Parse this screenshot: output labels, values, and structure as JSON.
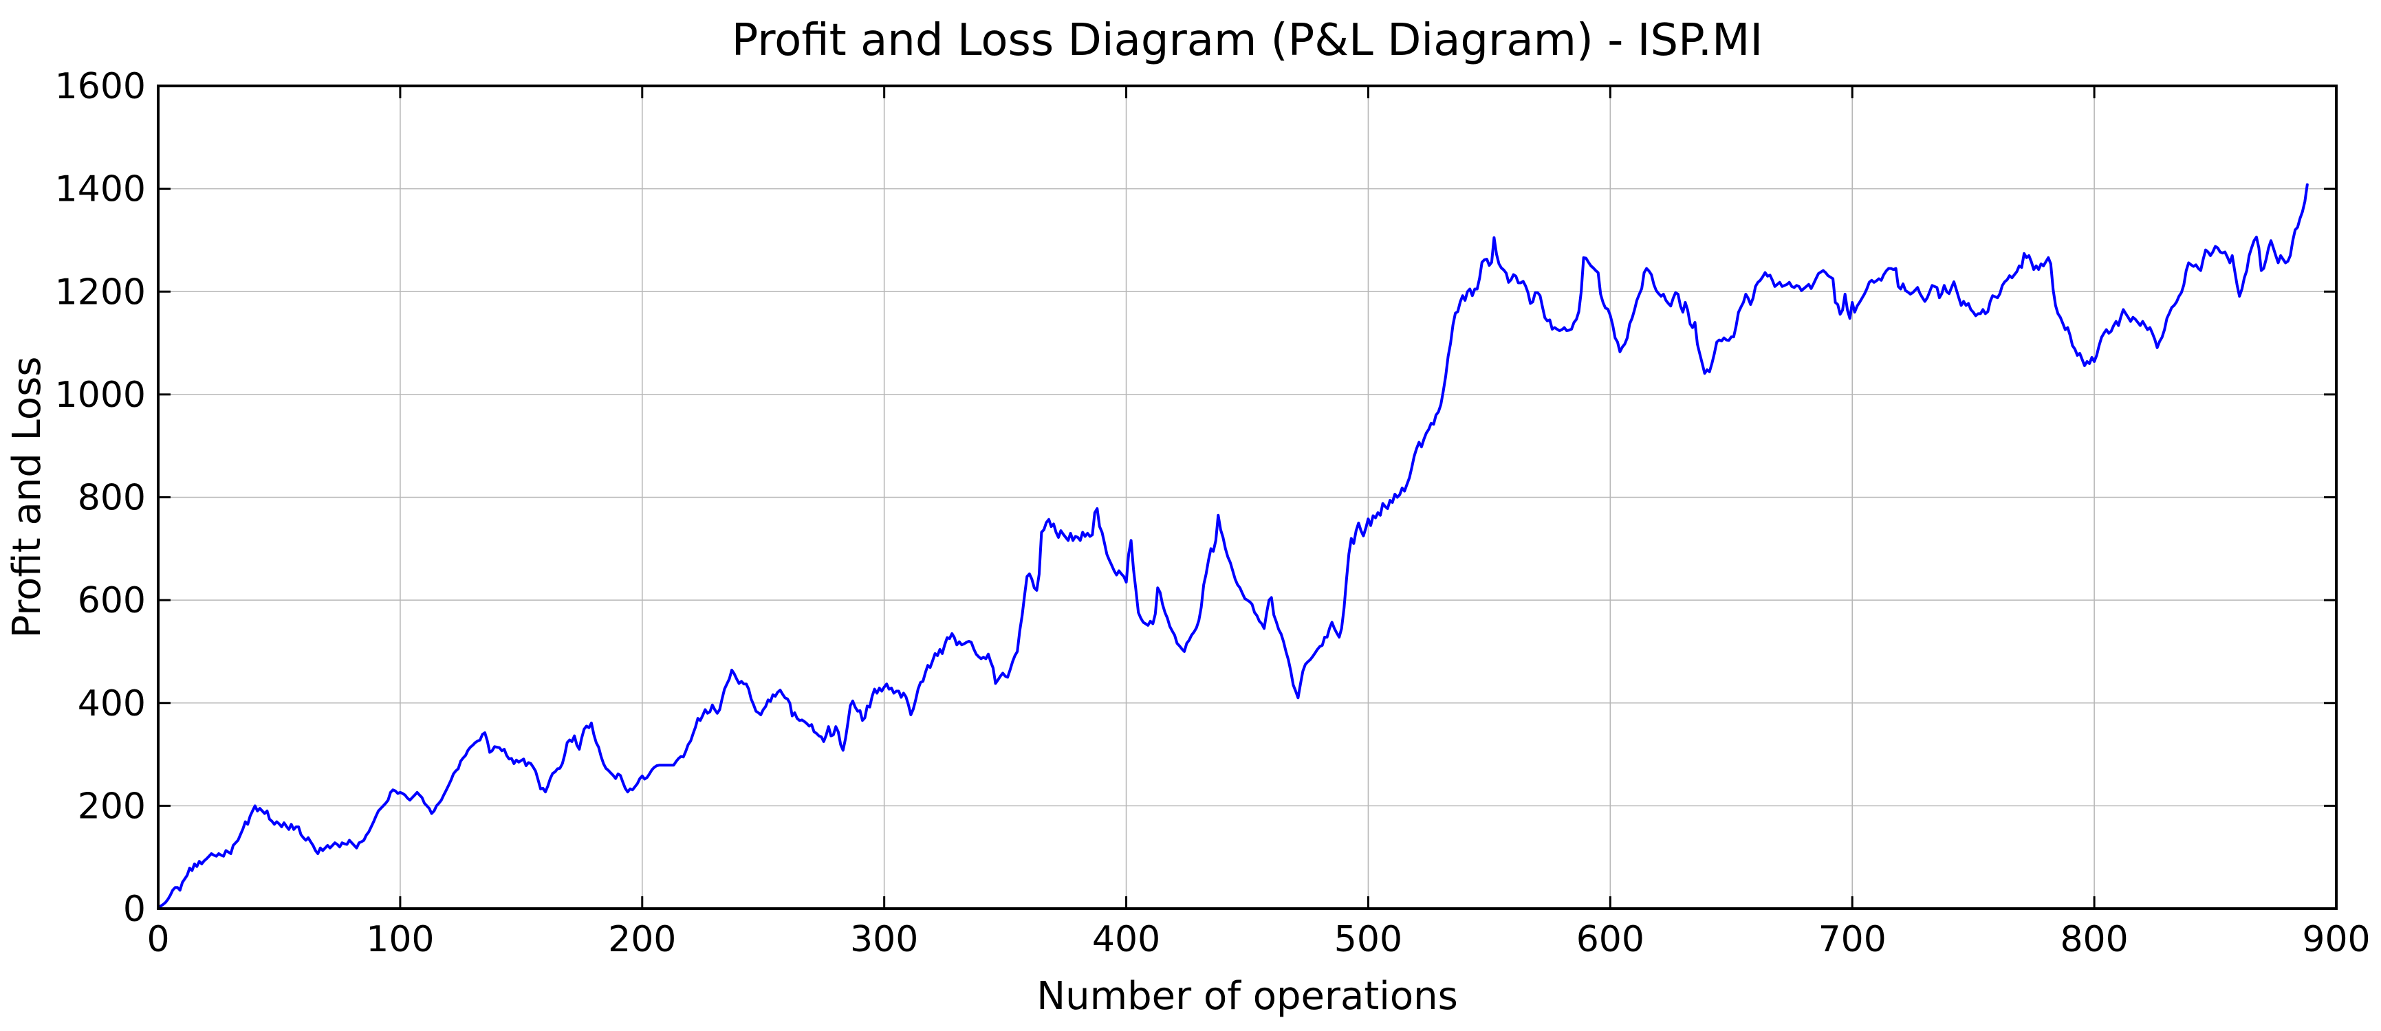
{
  "chart_data": {
    "type": "line",
    "title": "Profit and Loss Diagram (P&L Diagram) - ISP.MI",
    "xlabel": "Number of operations",
    "ylabel": "Profit and Loss",
    "xlim": [
      0,
      900
    ],
    "ylim": [
      0,
      1600
    ],
    "xticks": [
      0,
      100,
      200,
      300,
      400,
      500,
      600,
      700,
      800,
      900
    ],
    "yticks": [
      0,
      200,
      400,
      600,
      800,
      1000,
      1200,
      1400,
      1600
    ],
    "grid": true,
    "legend_position": "none",
    "colors": {
      "line": "#0000ff",
      "grid": "#b8b8b8",
      "spine": "#000000",
      "background": "#ffffff",
      "text": "#000000"
    },
    "series": [
      {
        "name": "Profit and Loss",
        "x_start": 0,
        "x_step": 1,
        "values": [
          0,
          5,
          8,
          12,
          18,
          26,
          36,
          41,
          41,
          36,
          51,
          58,
          65,
          79,
          74,
          87,
          82,
          92,
          87,
          93,
          97,
          102,
          107,
          104,
          102,
          107,
          104,
          102,
          113,
          110,
          107,
          123,
          128,
          133,
          144,
          155,
          169,
          164,
          180,
          190,
          200,
          190,
          195,
          190,
          185,
          190,
          174,
          170,
          164,
          169,
          165,
          159,
          167,
          160,
          154,
          164,
          154,
          159,
          159,
          144,
          138,
          133,
          138,
          130,
          123,
          113,
          107,
          118,
          113,
          118,
          123,
          118,
          123,
          128,
          125,
          120,
          128,
          126,
          125,
          133,
          128,
          123,
          118,
          128,
          130,
          133,
          143,
          149,
          159,
          169,
          180,
          190,
          195,
          200,
          205,
          211,
          226,
          231,
          229,
          224,
          226,
          224,
          221,
          215,
          211,
          216,
          221,
          226,
          221,
          216,
          205,
          200,
          195,
          185,
          190,
          200,
          205,
          211,
          221,
          230,
          240,
          250,
          262,
          268,
          272,
          287,
          293,
          298,
          308,
          314,
          318,
          323,
          326,
          328,
          339,
          342,
          326,
          304,
          307,
          315,
          314,
          313,
          307,
          310,
          298,
          291,
          292,
          282,
          289,
          285,
          288,
          291,
          278,
          284,
          282,
          275,
          267,
          250,
          233,
          234,
          227,
          238,
          253,
          263,
          266,
          272,
          273,
          282,
          300,
          323,
          328,
          325,
          336,
          318,
          310,
          332,
          349,
          355,
          352,
          361,
          339,
          323,
          314,
          296,
          282,
          273,
          269,
          264,
          259,
          253,
          262,
          259,
          246,
          234,
          227,
          233,
          231,
          237,
          243,
          253,
          258,
          252,
          255,
          262,
          270,
          275,
          278,
          279,
          279,
          279,
          279,
          279,
          279,
          279,
          286,
          292,
          296,
          295,
          306,
          319,
          326,
          340,
          353,
          370,
          366,
          376,
          387,
          380,
          383,
          396,
          387,
          380,
          387,
          408,
          427,
          437,
          447,
          464,
          457,
          447,
          438,
          442,
          437,
          437,
          427,
          408,
          397,
          384,
          381,
          377,
          387,
          393,
          406,
          403,
          416,
          413,
          421,
          425,
          417,
          410,
          408,
          400,
          375,
          381,
          370,
          366,
          367,
          364,
          360,
          355,
          358,
          344,
          341,
          336,
          334,
          325,
          337,
          354,
          336,
          338,
          354,
          344,
          319,
          308,
          331,
          362,
          395,
          404,
          392,
          384,
          385,
          366,
          371,
          394,
          392,
          413,
          427,
          419,
          429,
          423,
          431,
          437,
          427,
          429,
          419,
          423,
          423,
          411,
          419,
          412,
          396,
          377,
          388,
          406,
          427,
          440,
          442,
          459,
          473,
          469,
          482,
          496,
          492,
          504,
          496,
          513,
          527,
          525,
          535,
          527,
          513,
          519,
          513,
          515,
          518,
          520,
          518,
          505,
          495,
          490,
          486,
          489,
          486,
          495,
          480,
          468,
          438,
          445,
          452,
          458,
          452,
          450,
          464,
          480,
          492,
          500,
          540,
          570,
          610,
          646,
          651,
          641,
          624,
          619,
          650,
          732,
          737,
          751,
          757,
          743,
          748,
          732,
          722,
          735,
          728,
          722,
          716,
          730,
          716,
          724,
          722,
          716,
          732,
          724,
          730,
          724,
          727,
          770,
          778,
          743,
          732,
          711,
          689,
          678,
          668,
          657,
          649,
          657,
          651,
          646,
          635,
          690,
          716,
          660,
          620,
          576,
          565,
          557,
          554,
          551,
          559,
          554,
          573,
          624,
          615,
          592,
          576,
          565,
          549,
          540,
          532,
          516,
          511,
          505,
          500,
          516,
          522,
          532,
          538,
          546,
          560,
          586,
          630,
          651,
          678,
          700,
          695,
          716,
          765,
          737,
          722,
          700,
          684,
          673,
          657,
          641,
          630,
          624,
          613,
          603,
          600,
          597,
          592,
          576,
          570,
          559,
          554,
          545,
          575,
          600,
          605,
          571,
          558,
          543,
          534,
          519,
          500,
          484,
          462,
          435,
          423,
          410,
          437,
          462,
          475,
          480,
          484,
          490,
          497,
          504,
          510,
          512,
          528,
          528,
          545,
          557,
          545,
          536,
          528,
          545,
          585,
          640,
          690,
          720,
          710,
          735,
          750,
          735,
          725,
          740,
          758,
          745,
          764,
          760,
          770,
          765,
          788,
          782,
          778,
          794,
          790,
          806,
          800,
          805,
          818,
          812,
          825,
          838,
          858,
          880,
          895,
          907,
          898,
          913,
          925,
          932,
          944,
          942,
          960,
          966,
          980,
          1006,
          1035,
          1074,
          1099,
          1135,
          1158,
          1161,
          1180,
          1192,
          1183,
          1200,
          1205,
          1192,
          1205,
          1205,
          1226,
          1257,
          1262,
          1263,
          1251,
          1257,
          1305,
          1273,
          1254,
          1246,
          1242,
          1236,
          1218,
          1223,
          1233,
          1230,
          1217,
          1217,
          1220,
          1211,
          1198,
          1177,
          1180,
          1198,
          1198,
          1192,
          1170,
          1149,
          1143,
          1145,
          1127,
          1130,
          1127,
          1124,
          1126,
          1130,
          1124,
          1125,
          1127,
          1140,
          1146,
          1161,
          1200,
          1266,
          1265,
          1257,
          1250,
          1246,
          1241,
          1237,
          1195,
          1179,
          1168,
          1166,
          1154,
          1135,
          1110,
          1102,
          1083,
          1092,
          1098,
          1110,
          1137,
          1148,
          1164,
          1183,
          1195,
          1206,
          1237,
          1245,
          1240,
          1233,
          1214,
          1202,
          1196,
          1191,
          1195,
          1183,
          1177,
          1172,
          1187,
          1198,
          1195,
          1172,
          1160,
          1179,
          1164,
          1137,
          1130,
          1140,
          1098,
          1079,
          1060,
          1041,
          1048,
          1044,
          1060,
          1079,
          1102,
          1106,
          1104,
          1110,
          1106,
          1105,
          1112,
          1112,
          1133,
          1160,
          1170,
          1179,
          1195,
          1187,
          1175,
          1187,
          1210,
          1218,
          1222,
          1229,
          1237,
          1230,
          1232,
          1222,
          1210,
          1214,
          1218,
          1210,
          1212,
          1214,
          1218,
          1210,
          1208,
          1212,
          1210,
          1202,
          1206,
          1210,
          1214,
          1206,
          1215,
          1225,
          1235,
          1238,
          1241,
          1237,
          1231,
          1228,
          1225,
          1179,
          1175,
          1156,
          1164,
          1195,
          1164,
          1148,
          1179,
          1160,
          1172,
          1179,
          1187,
          1195,
          1205,
          1218,
          1222,
          1218,
          1221,
          1225,
          1222,
          1233,
          1240,
          1245,
          1245,
          1243,
          1245,
          1210,
          1205,
          1215,
          1202,
          1199,
          1195,
          1198,
          1203,
          1208,
          1196,
          1188,
          1181,
          1188,
          1200,
          1212,
          1210,
          1208,
          1188,
          1196,
          1212,
          1200,
          1196,
          1208,
          1219,
          1204,
          1188,
          1173,
          1181,
          1173,
          1177,
          1165,
          1160,
          1153,
          1157,
          1157,
          1165,
          1157,
          1161,
          1181,
          1192,
          1190,
          1188,
          1196,
          1212,
          1219,
          1223,
          1231,
          1227,
          1233,
          1239,
          1250,
          1247,
          1274,
          1266,
          1270,
          1258,
          1243,
          1250,
          1243,
          1254,
          1250,
          1258,
          1266,
          1254,
          1204,
          1173,
          1157,
          1150,
          1138,
          1126,
          1130,
          1115,
          1095,
          1088,
          1076,
          1080,
          1068,
          1056,
          1064,
          1060,
          1072,
          1064,
          1076,
          1095,
          1111,
          1119,
          1126,
          1119,
          1123,
          1134,
          1142,
          1134,
          1151,
          1165,
          1157,
          1150,
          1142,
          1150,
          1146,
          1140,
          1134,
          1142,
          1134,
          1126,
          1130,
          1119,
          1107,
          1091,
          1103,
          1111,
          1126,
          1148,
          1158,
          1169,
          1173,
          1180,
          1191,
          1198,
          1213,
          1241,
          1256,
          1252,
          1249,
          1252,
          1245,
          1241,
          1263,
          1281,
          1277,
          1270,
          1277,
          1288,
          1285,
          1277,
          1275,
          1277,
          1267,
          1256,
          1270,
          1241,
          1213,
          1191,
          1205,
          1227,
          1241,
          1270,
          1285,
          1299,
          1306,
          1285,
          1241,
          1245,
          1263,
          1285,
          1299,
          1285,
          1270,
          1256,
          1270,
          1263,
          1256,
          1259,
          1270,
          1299,
          1320,
          1325,
          1342,
          1355,
          1375,
          1408
        ]
      }
    ]
  }
}
